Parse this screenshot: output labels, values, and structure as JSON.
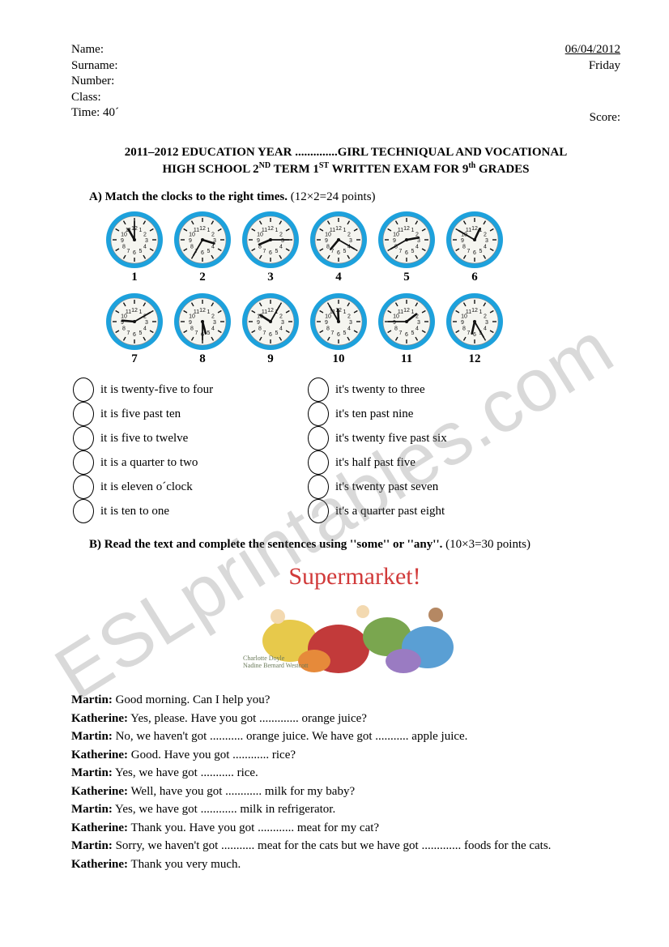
{
  "header": {
    "name_label": "Name:",
    "surname_label": "Surname:",
    "number_label": "Number:",
    "class_label": "Class:",
    "time_label": "Time:",
    "time_value": "40´",
    "date": "06/04/2012",
    "day": "Friday",
    "score_label": "Score:"
  },
  "title": {
    "line1_a": "2011–2012 EDUCATION YEAR ..............GIRL TECHNIQUAL AND VOCATIONAL",
    "line2_a": "HIGH SCHOOL 2",
    "line2_sup1": "ND",
    "line2_b": " TERM 1",
    "line2_sup2": "ST",
    "line2_c": " WRITTEN EXAM FOR 9",
    "line2_sup3": "th",
    "line2_d": " GRADES"
  },
  "sectionA": {
    "label": "A)  Match the clocks to the right times.",
    "points": "(12×2=24 points)",
    "clock_colors": {
      "rim": "#1da1dc",
      "face": "#f5f5f0",
      "tick": "#111111",
      "hand": "#111111"
    },
    "clocks": [
      {
        "n": "1",
        "h": 11,
        "m": 0
      },
      {
        "n": "2",
        "h": 3,
        "m": 35
      },
      {
        "n": "3",
        "h": 8,
        "m": 15
      },
      {
        "n": "4",
        "h": 7,
        "m": 20
      },
      {
        "n": "5",
        "h": 2,
        "m": 40
      },
      {
        "n": "6",
        "h": 12,
        "m": 50
      },
      {
        "n": "7",
        "h": 9,
        "m": 10
      },
      {
        "n": "8",
        "h": 5,
        "m": 30
      },
      {
        "n": "9",
        "h": 10,
        "m": 5
      },
      {
        "n": "10",
        "h": 11,
        "m": 55
      },
      {
        "n": "11",
        "h": 1,
        "m": 45
      },
      {
        "n": "12",
        "h": 6,
        "m": 25
      }
    ],
    "left_items": [
      "it is twenty-five to four",
      "it is five past ten",
      "it is five to twelve",
      "it is a quarter to two",
      "it is eleven o´clock",
      "it is ten to one"
    ],
    "right_items": [
      "it's twenty to three",
      "it's ten past nine",
      "it's twenty five past six",
      "it's half past five",
      "it's twenty past seven",
      "it's a quarter past eight"
    ]
  },
  "sectionB": {
    "label": "B) Read the text and complete the sentences using ''some'' or ''any''.",
    "points": "(10×3=30 points)",
    "illustration": {
      "title": "Supermarket!",
      "title_color": "#d13a3a",
      "author": "Charlotte Doyle",
      "illustrator": "Nadine Bernard Westcott",
      "blob_colors": [
        "#e7c94b",
        "#c23a3a",
        "#7aa64f",
        "#5a9fd4",
        "#e68a3a",
        "#9a7bc2"
      ]
    },
    "dialogue": [
      {
        "who": "Martin:",
        "text": " Good morning. Can I help you?"
      },
      {
        "who": "Katherine:",
        "text": " Yes, please. Have you got ............. orange juice?"
      },
      {
        "who": "Martin:",
        "text": " No, we haven't got ........... orange juice. We have got ........... apple juice."
      },
      {
        "who": "Katherine:",
        "text": " Good. Have you got ............ rice?"
      },
      {
        "who": "Martin:",
        "text": " Yes, we have got ........... rice."
      },
      {
        "who": "Katherine:",
        "text": " Well, have you got ............ milk for my baby?"
      },
      {
        "who": "Martin:",
        "text": " Yes, we have got ............ milk in refrigerator."
      },
      {
        "who": "Katherine:",
        "text": " Thank you. Have you got ............ meat for my cat?"
      },
      {
        "who": "Martin:",
        "text": " Sorry, we haven't got ........... meat for the cats but we have got ............. foods for the cats."
      },
      {
        "who": "Katherine:",
        "text": " Thank you very much."
      }
    ]
  },
  "watermark": "ESLprintables.com"
}
